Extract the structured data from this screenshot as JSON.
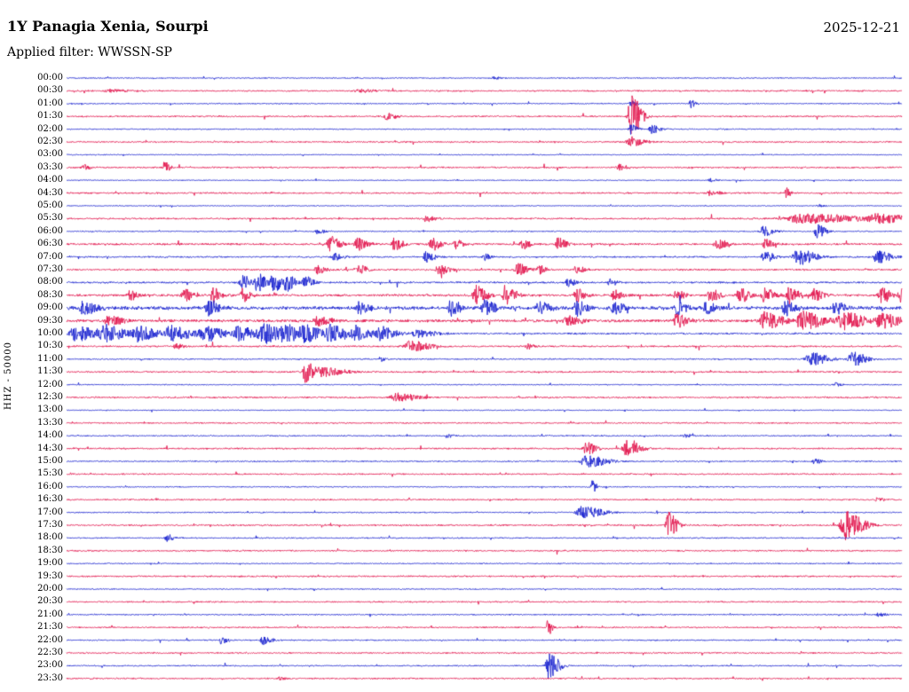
{
  "header": {
    "title": "1Y Panagia Xenia, Sourpi",
    "filter": "Applied filter: WWSSN-SP",
    "date": "2025-12-21"
  },
  "chart_data": {
    "type": "line",
    "subtype": "helicorder-seismogram",
    "title": "1Y Panagia Xenia, Sourpi",
    "date": "2025-12-21",
    "filter": "WWSSN-SP",
    "channel": "HHZ",
    "scale": "50000",
    "ylabel": "HHZ - 50000",
    "minutes_per_row": 30,
    "rows_count": 48,
    "grid": false,
    "legend": "none",
    "colors": {
      "blue": "#1b24cf",
      "red": "#e2164e"
    },
    "events_format": "[position_fraction_of_row, amplitude_px, width_fraction_of_row]",
    "rows": [
      {
        "label": "00:00",
        "color": "blue",
        "noise": 0.7,
        "events": [
          [
            0.511,
            2,
            0.004
          ]
        ]
      },
      {
        "label": "00:30",
        "color": "red",
        "noise": 0.95,
        "events": [
          [
            0.05,
            2,
            0.01
          ],
          [
            0.35,
            1.5,
            0.01
          ]
        ]
      },
      {
        "label": "01:00",
        "color": "blue",
        "noise": 0.7,
        "events": [
          [
            0.675,
            3,
            0.004
          ],
          [
            0.747,
            5,
            0.003
          ]
        ]
      },
      {
        "label": "01:30",
        "color": "red",
        "noise": 0.95,
        "events": [
          [
            0.383,
            4,
            0.006
          ],
          [
            0.675,
            26,
            0.006
          ]
        ]
      },
      {
        "label": "02:00",
        "color": "blue",
        "noise": 0.7,
        "events": [
          [
            0.675,
            6,
            0.004
          ],
          [
            0.7,
            5,
            0.005
          ]
        ]
      },
      {
        "label": "02:30",
        "color": "red",
        "noise": 0.9,
        "events": [
          [
            0.675,
            6,
            0.008
          ]
        ]
      },
      {
        "label": "03:00",
        "color": "blue",
        "noise": 0.6,
        "events": []
      },
      {
        "label": "03:30",
        "color": "red",
        "noise": 0.95,
        "events": [
          [
            0.02,
            3,
            0.004
          ],
          [
            0.117,
            7,
            0.003
          ],
          [
            0.661,
            4,
            0.005
          ]
        ]
      },
      {
        "label": "04:00",
        "color": "blue",
        "noise": 0.6,
        "events": [
          [
            0.77,
            2,
            0.004
          ]
        ]
      },
      {
        "label": "04:30",
        "color": "red",
        "noise": 1.0,
        "events": [
          [
            0.77,
            3,
            0.006
          ],
          [
            0.861,
            6,
            0.0025
          ]
        ]
      },
      {
        "label": "05:00",
        "color": "blue",
        "noise": 0.6,
        "events": [
          [
            0.9,
            2,
            0.004
          ]
        ]
      },
      {
        "label": "05:30",
        "color": "red",
        "noise": 1.05,
        "events": [
          [
            0.43,
            3,
            0.006
          ],
          [
            0.88,
            5,
            0.035
          ],
          [
            0.97,
            4,
            0.02
          ]
        ]
      },
      {
        "label": "06:00",
        "color": "blue",
        "noise": 0.7,
        "events": [
          [
            0.3,
            3,
            0.004
          ],
          [
            0.834,
            7,
            0.006
          ],
          [
            0.898,
            8,
            0.005
          ]
        ]
      },
      {
        "label": "06:30",
        "color": "red",
        "noise": 1.3,
        "events": [
          [
            0.315,
            9,
            0.006
          ],
          [
            0.348,
            9,
            0.005
          ],
          [
            0.392,
            7,
            0.005
          ],
          [
            0.437,
            7,
            0.005
          ],
          [
            0.465,
            6,
            0.004
          ],
          [
            0.545,
            5,
            0.005
          ],
          [
            0.588,
            7,
            0.005
          ],
          [
            0.78,
            6,
            0.006
          ],
          [
            0.835,
            5,
            0.005
          ]
        ]
      },
      {
        "label": "07:00",
        "color": "blue",
        "noise": 1.0,
        "events": [
          [
            0.32,
            4,
            0.005
          ],
          [
            0.43,
            6,
            0.005
          ],
          [
            0.5,
            4,
            0.004
          ],
          [
            0.835,
            6,
            0.006
          ],
          [
            0.875,
            9,
            0.01
          ],
          [
            0.97,
            7,
            0.008
          ]
        ]
      },
      {
        "label": "07:30",
        "color": "red",
        "noise": 1.1,
        "events": [
          [
            0.3,
            5,
            0.005
          ],
          [
            0.35,
            5,
            0.005
          ],
          [
            0.445,
            6,
            0.006
          ],
          [
            0.54,
            7,
            0.006
          ],
          [
            0.565,
            6,
            0.004
          ],
          [
            0.61,
            4,
            0.005
          ]
        ]
      },
      {
        "label": "08:00",
        "color": "blue",
        "noise": 1.2,
        "events": [
          [
            0.21,
            8,
            0.005
          ],
          [
            0.228,
            11,
            0.005
          ],
          [
            0.247,
            11,
            0.005
          ],
          [
            0.263,
            10,
            0.005
          ],
          [
            0.285,
            7,
            0.005
          ],
          [
            0.6,
            4,
            0.005
          ],
          [
            0.65,
            4,
            0.004
          ]
        ]
      },
      {
        "label": "08:30",
        "color": "red",
        "noise": 1.5,
        "events": [
          [
            0.075,
            5,
            0.005
          ],
          [
            0.14,
            7,
            0.005
          ],
          [
            0.175,
            9,
            0.005
          ],
          [
            0.21,
            7,
            0.005
          ],
          [
            0.49,
            11,
            0.006
          ],
          [
            0.525,
            11,
            0.006
          ],
          [
            0.61,
            7,
            0.005
          ],
          [
            0.655,
            6,
            0.005
          ],
          [
            0.73,
            6,
            0.005
          ],
          [
            0.77,
            7,
            0.006
          ],
          [
            0.805,
            8,
            0.006
          ],
          [
            0.835,
            8,
            0.006
          ],
          [
            0.865,
            9,
            0.006
          ],
          [
            0.895,
            8,
            0.005
          ],
          [
            0.975,
            8,
            0.006
          ],
          [
            1.0,
            12,
            0.006
          ]
        ]
      },
      {
        "label": "09:00",
        "color": "blue",
        "noise": 2.2,
        "events": [
          [
            0.02,
            7,
            0.008
          ],
          [
            0.17,
            8,
            0.006
          ],
          [
            0.35,
            6,
            0.006
          ],
          [
            0.46,
            9,
            0.006
          ],
          [
            0.5,
            9,
            0.006
          ],
          [
            0.565,
            7,
            0.006
          ],
          [
            0.61,
            8,
            0.006
          ],
          [
            0.655,
            7,
            0.006
          ],
          [
            0.73,
            7,
            0.006
          ],
          [
            0.765,
            7,
            0.006
          ],
          [
            0.86,
            8,
            0.006
          ],
          [
            0.92,
            7,
            0.006
          ]
        ]
      },
      {
        "label": "09:30",
        "color": "red",
        "noise": 1.8,
        "events": [
          [
            0.05,
            5,
            0.008
          ],
          [
            0.3,
            5,
            0.008
          ],
          [
            0.6,
            5,
            0.008
          ],
          [
            0.73,
            7,
            0.008
          ],
          [
            0.835,
            10,
            0.01
          ],
          [
            0.88,
            11,
            0.012
          ],
          [
            0.93,
            10,
            0.012
          ],
          [
            0.975,
            9,
            0.01
          ]
        ]
      },
      {
        "label": "10:00",
        "color": "blue",
        "noise": 1.1,
        "events": [
          [
            0.01,
            9,
            0.012
          ],
          [
            0.045,
            9,
            0.012
          ],
          [
            0.085,
            8,
            0.012
          ],
          [
            0.125,
            9,
            0.012
          ],
          [
            0.165,
            8,
            0.012
          ],
          [
            0.205,
            8,
            0.01
          ],
          [
            0.235,
            11,
            0.01
          ],
          [
            0.26,
            10,
            0.01
          ],
          [
            0.285,
            9,
            0.01
          ],
          [
            0.315,
            9,
            0.01
          ],
          [
            0.345,
            8,
            0.01
          ],
          [
            0.375,
            7,
            0.01
          ],
          [
            0.42,
            5,
            0.01
          ]
        ]
      },
      {
        "label": "10:30",
        "color": "red",
        "noise": 1.1,
        "events": [
          [
            0.13,
            3,
            0.005
          ],
          [
            0.41,
            6,
            0.012
          ],
          [
            0.55,
            3,
            0.004
          ]
        ]
      },
      {
        "label": "11:00",
        "color": "blue",
        "noise": 0.8,
        "events": [
          [
            0.375,
            3,
            0.003
          ],
          [
            0.89,
            8,
            0.01
          ],
          [
            0.94,
            8,
            0.008
          ]
        ]
      },
      {
        "label": "11:30",
        "color": "red",
        "noise": 1.0,
        "events": [
          [
            0.285,
            13,
            0.004
          ],
          [
            0.3,
            6,
            0.015
          ]
        ]
      },
      {
        "label": "12:00",
        "color": "blue",
        "noise": 0.7,
        "events": [
          [
            0.92,
            2,
            0.004
          ]
        ]
      },
      {
        "label": "12:30",
        "color": "red",
        "noise": 1.0,
        "events": [
          [
            0.395,
            5,
            0.012
          ]
        ]
      },
      {
        "label": "13:00",
        "color": "blue",
        "noise": 0.6,
        "events": []
      },
      {
        "label": "13:30",
        "color": "red",
        "noise": 0.85,
        "events": []
      },
      {
        "label": "14:00",
        "color": "blue",
        "noise": 0.8,
        "events": [
          [
            0.455,
            2,
            0.004
          ],
          [
            0.74,
            2,
            0.004
          ]
        ]
      },
      {
        "label": "14:30",
        "color": "red",
        "noise": 1.0,
        "events": [
          [
            0.622,
            7,
            0.006
          ],
          [
            0.67,
            9,
            0.008
          ]
        ]
      },
      {
        "label": "15:00",
        "color": "blue",
        "noise": 0.8,
        "events": [
          [
            0.622,
            7,
            0.012
          ],
          [
            0.895,
            3,
            0.004
          ]
        ]
      },
      {
        "label": "15:30",
        "color": "red",
        "noise": 0.9,
        "events": []
      },
      {
        "label": "16:00",
        "color": "blue",
        "noise": 0.7,
        "events": [
          [
            0.629,
            8,
            0.0025
          ]
        ]
      },
      {
        "label": "16:30",
        "color": "red",
        "noise": 0.9,
        "events": [
          [
            0.97,
            2,
            0.004
          ]
        ]
      },
      {
        "label": "17:00",
        "color": "blue",
        "noise": 0.8,
        "events": [
          [
            0.617,
            7,
            0.012
          ]
        ]
      },
      {
        "label": "17:30",
        "color": "red",
        "noise": 1.0,
        "events": [
          [
            0.72,
            15,
            0.005
          ],
          [
            0.932,
            17,
            0.01
          ]
        ]
      },
      {
        "label": "18:00",
        "color": "blue",
        "noise": 0.8,
        "events": [
          [
            0.12,
            4,
            0.004
          ]
        ]
      },
      {
        "label": "18:30",
        "color": "red",
        "noise": 0.9,
        "events": []
      },
      {
        "label": "19:00",
        "color": "blue",
        "noise": 0.7,
        "events": []
      },
      {
        "label": "19:30",
        "color": "red",
        "noise": 1.0,
        "events": []
      },
      {
        "label": "20:00",
        "color": "blue",
        "noise": 0.7,
        "events": []
      },
      {
        "label": "20:30",
        "color": "red",
        "noise": 0.9,
        "events": []
      },
      {
        "label": "21:00",
        "color": "blue",
        "noise": 0.8,
        "events": [
          [
            0.97,
            2,
            0.005
          ]
        ]
      },
      {
        "label": "21:30",
        "color": "red",
        "noise": 0.9,
        "events": [
          [
            0.576,
            10,
            0.0025
          ]
        ]
      },
      {
        "label": "22:00",
        "color": "blue",
        "noise": 0.8,
        "events": [
          [
            0.185,
            4,
            0.004
          ],
          [
            0.235,
            5,
            0.005
          ]
        ]
      },
      {
        "label": "22:30",
        "color": "red",
        "noise": 0.9,
        "events": []
      },
      {
        "label": "23:00",
        "color": "blue",
        "noise": 0.8,
        "events": [
          [
            0.577,
            15,
            0.006
          ]
        ]
      },
      {
        "label": "23:30",
        "color": "red",
        "noise": 0.9,
        "events": [
          [
            0.255,
            2,
            0.004
          ]
        ]
      }
    ]
  }
}
